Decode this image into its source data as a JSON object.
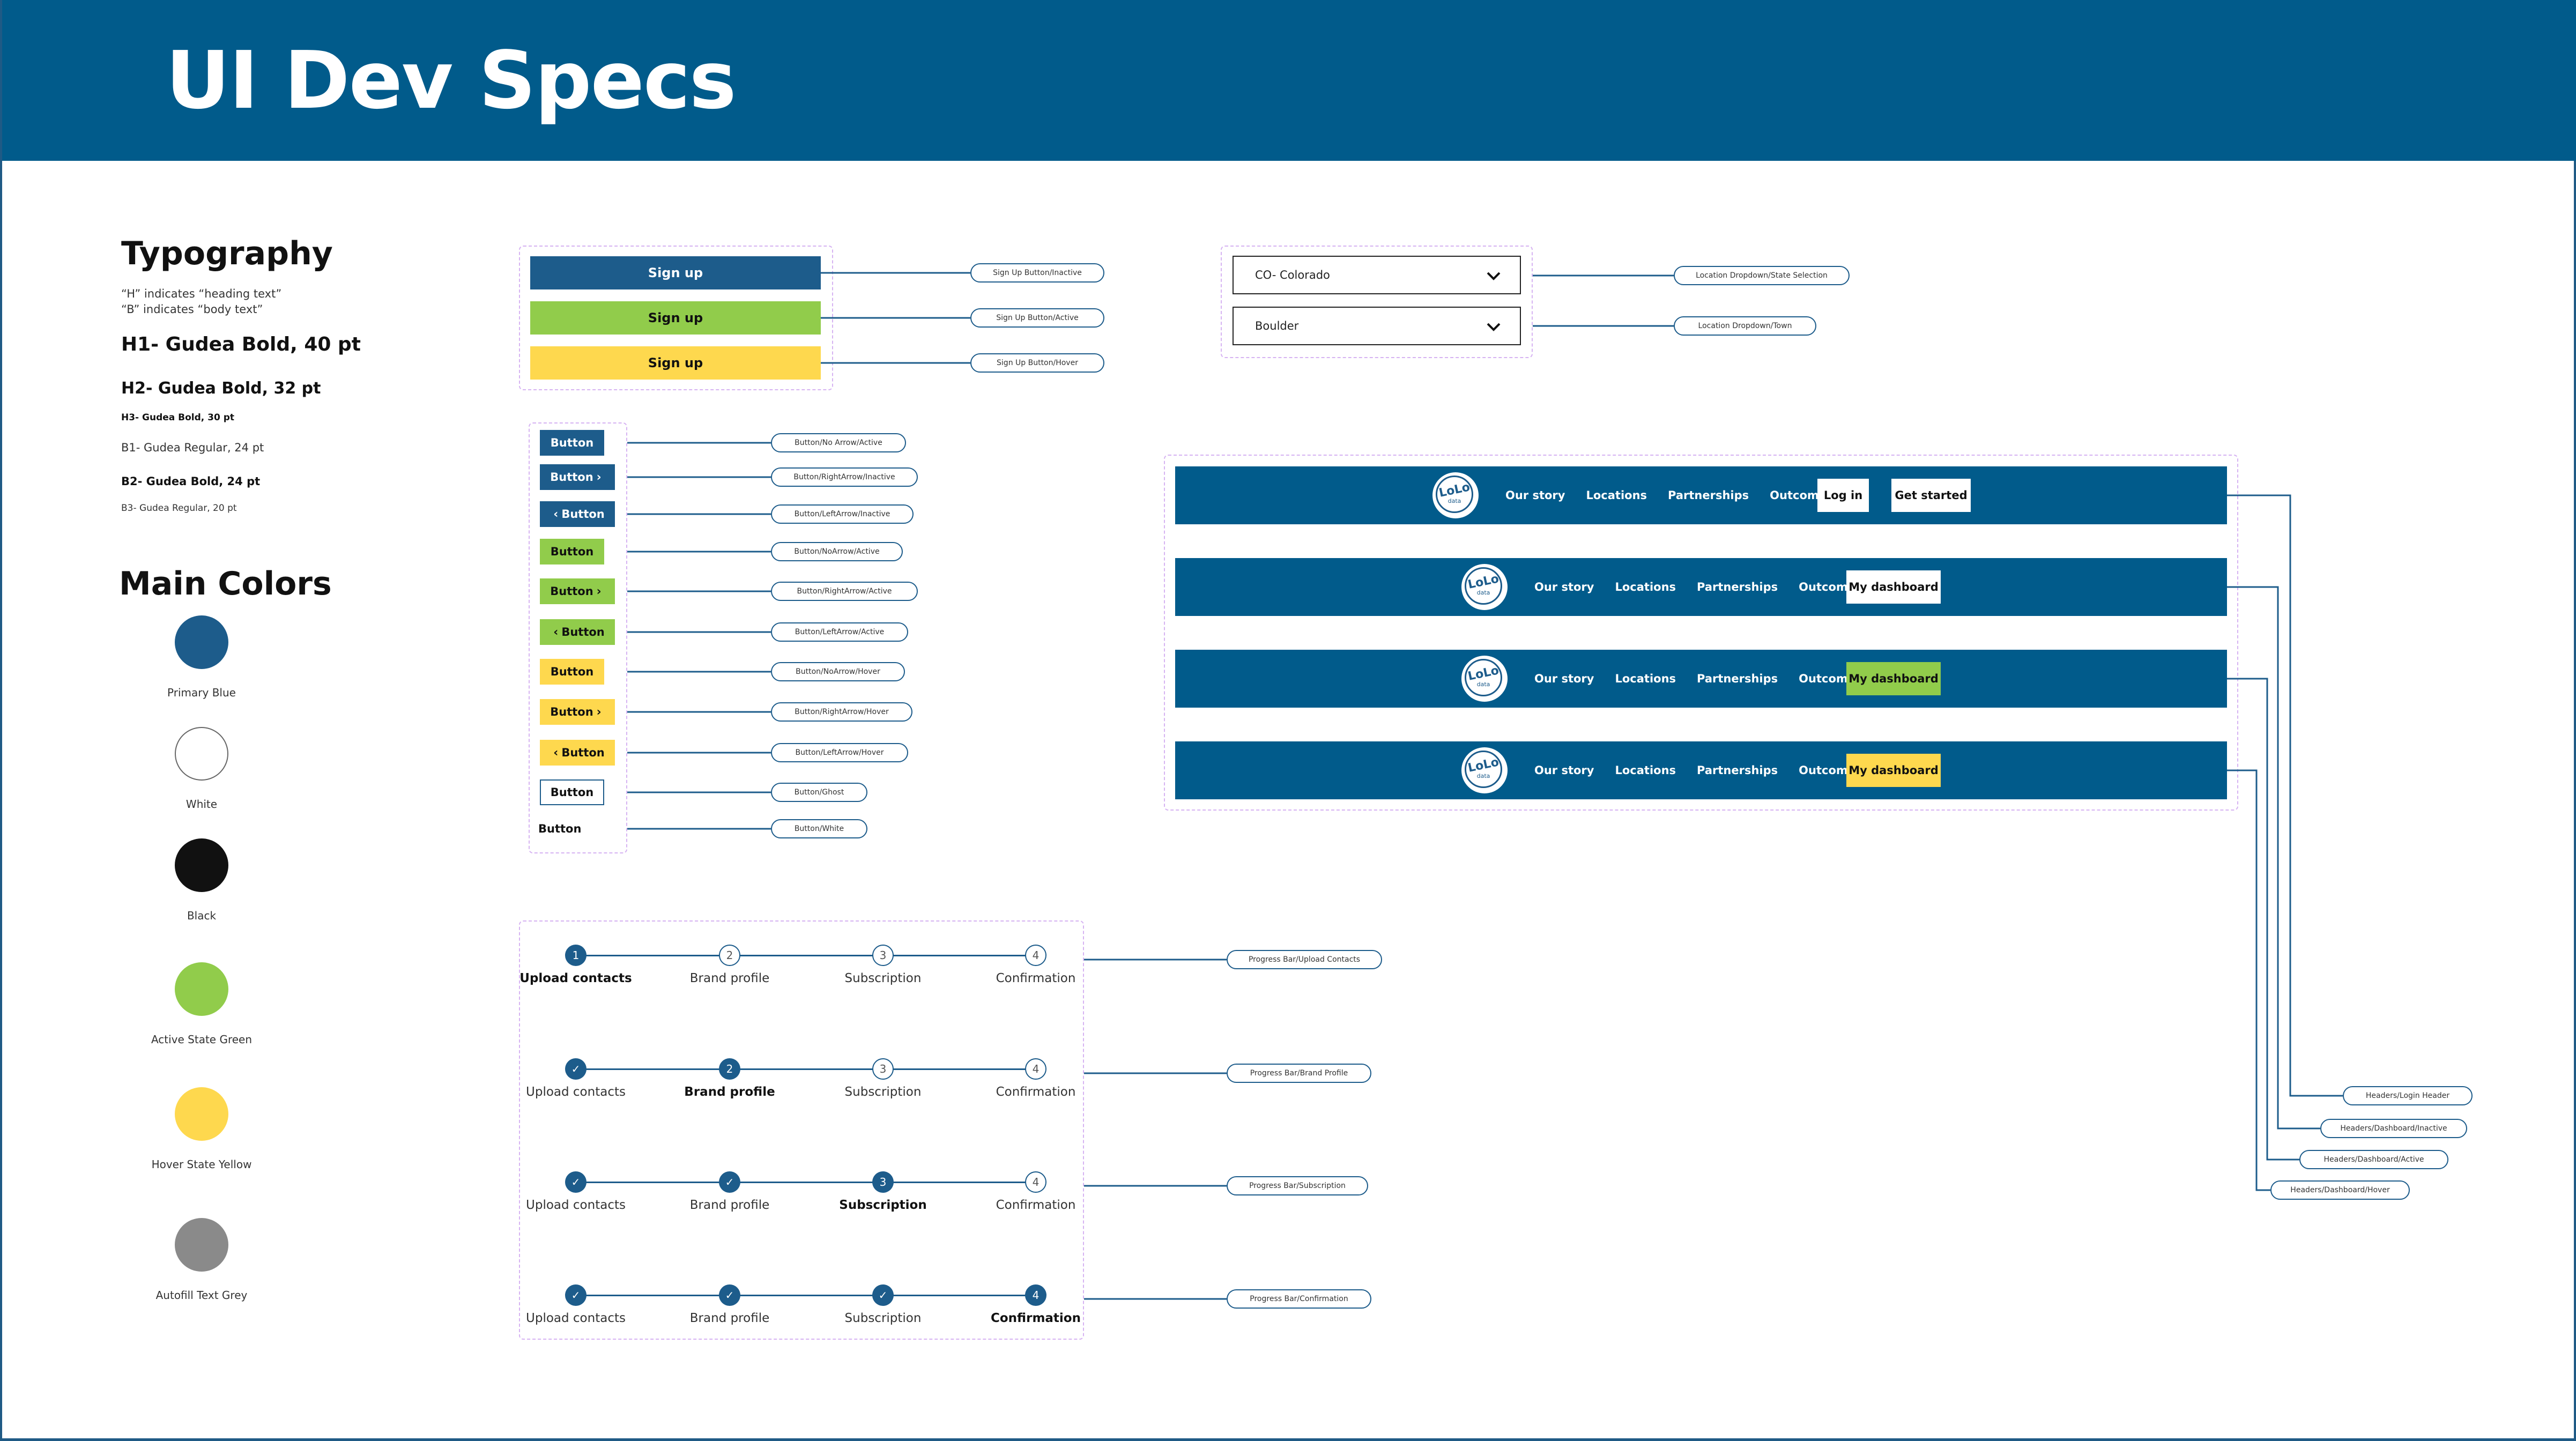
{
  "title": "UI Dev Specs",
  "typography": {
    "title": "Typography",
    "note_h": "“H” indicates “heading text”",
    "note_b": "“B” indicates “body text”",
    "h1": "H1- Gudea Bold, 40 pt",
    "h2": "H2- Gudea Bold, 32 pt",
    "h3": "H3- Gudea Bold, 30 pt",
    "b1": "B1- Gudea Regular, 24 pt",
    "b2": "B2- Gudea Bold, 24 pt",
    "b3": "B3- Gudea Regular, 20 pt"
  },
  "colors": {
    "title": "Main Colors",
    "items": [
      {
        "label": "Primary Blue",
        "hex": "#1d5c8b"
      },
      {
        "label": "White",
        "hex": "#ffffff"
      },
      {
        "label": "Black",
        "hex": "#111111"
      },
      {
        "label": "Active State Green",
        "hex": "#91cc4b"
      },
      {
        "label": "Hover State Yellow",
        "hex": "#fed84e"
      },
      {
        "label": "Autofill Text Grey",
        "hex": "#8a8a8a"
      }
    ]
  },
  "signup_buttons": {
    "label": "Sign up",
    "tags": [
      "Sign Up Button/Inactive",
      "Sign Up Button/Active",
      "Sign Up Button/Hover"
    ]
  },
  "buttons": {
    "label": "Button",
    "tags": [
      "Button/No Arrow/Active",
      "Button/RightArrow/Inactive",
      "Button/LeftArrow/Inactive",
      "Button/NoArrow/Active",
      "Button/RightArrow/Active",
      "Button/LeftArrow/Active",
      "Button/NoArrow/Hover",
      "Button/RightArrow/Hover",
      "Button/LeftArrow/Hover",
      "Button/Ghost",
      "Button/White"
    ]
  },
  "dropdowns": {
    "state_value": "CO- Colorado",
    "town_value": "Boulder",
    "tags": [
      "Location Dropdown/State Selection",
      "Location Dropdown/Town"
    ]
  },
  "headers": {
    "logo_text": "LoLo",
    "logo_sub": "data",
    "nav": [
      "Our story",
      "Locations",
      "Partnerships",
      "Outcome"
    ],
    "login": "Log in",
    "get_started": "Get started",
    "dashboard": "My dashboard",
    "tags": [
      "Headers/Login Header",
      "Headers/Dashboard/Inactive",
      "Headers/Dashboard/Active",
      "Headers/Dashboard/Hover"
    ]
  },
  "progress": {
    "steps": [
      "Upload contacts",
      "Brand profile",
      "Subscription",
      "Confirmation"
    ],
    "numbers": [
      "1",
      "2",
      "3",
      "4"
    ],
    "check": "✓",
    "tags": [
      "Progress Bar/Upload Contacts",
      "Progress Bar/Brand Profile",
      "Progress Bar/Subscription",
      "Progress Bar/Confirmation"
    ]
  }
}
